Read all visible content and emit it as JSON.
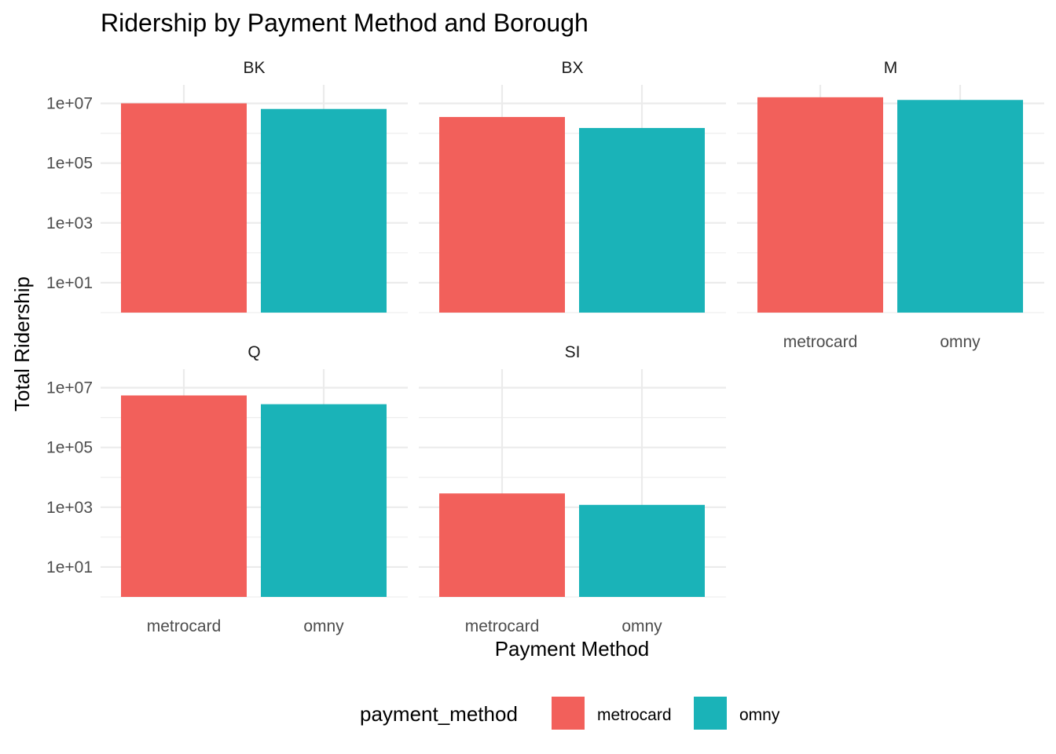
{
  "chart_data": {
    "type": "bar",
    "title": "Ridership by Payment Method and Borough",
    "xlabel": "Payment Method",
    "ylabel": "Total Ridership",
    "y_scale": "log10",
    "ylim": [
      1,
      10000000
    ],
    "y_ticks": [
      10,
      1000,
      100000,
      10000000
    ],
    "y_tick_labels": [
      "1e+01",
      "1e+03",
      "1e+05",
      "1e+07"
    ],
    "categories": [
      "metrocard",
      "omny"
    ],
    "facets": [
      {
        "label": "BK",
        "values": [
          10000000,
          6500000
        ]
      },
      {
        "label": "BX",
        "values": [
          3500000,
          1500000
        ]
      },
      {
        "label": "M",
        "values": [
          16000000,
          13000000
        ]
      },
      {
        "label": "Q",
        "values": [
          5500000,
          2800000
        ]
      },
      {
        "label": "SI",
        "values": [
          2900,
          1200
        ]
      }
    ],
    "legend": {
      "title": "payment_method",
      "position": "bottom",
      "entries": [
        {
          "label": "metrocard",
          "color": "#F8766D"
        },
        {
          "label": "omny",
          "color": "#00BFC4"
        }
      ]
    },
    "grid": true
  },
  "colors": {
    "metrocard": "#F2605B",
    "omny": "#1AB3B8"
  }
}
